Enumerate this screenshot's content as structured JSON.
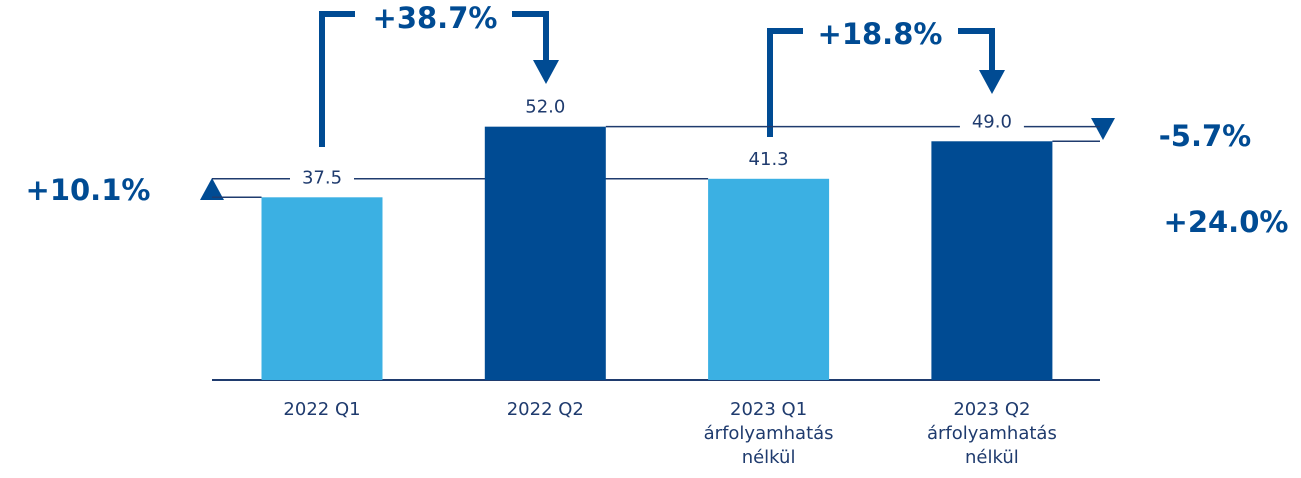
{
  "chart_data": {
    "type": "bar",
    "categories": [
      "2022 Q1",
      "2022 Q2",
      "2023 Q1\nárfolyamhatás\nnélkül",
      "2023 Q2\nárfolyamhatás\nnélkül"
    ],
    "values": [
      37.5,
      52.0,
      41.3,
      49.0
    ],
    "value_labels": [
      "37.5",
      "52.0",
      "41.3",
      "49.0"
    ],
    "colors": [
      "#3bb0e3",
      "#004b93",
      "#3bb0e3",
      "#004b93"
    ],
    "ylim": [
      0,
      78
    ],
    "annotations": [
      "+38.7%",
      "+18.8%",
      "+10.1%",
      "-5.7%",
      "+24.0%"
    ]
  }
}
